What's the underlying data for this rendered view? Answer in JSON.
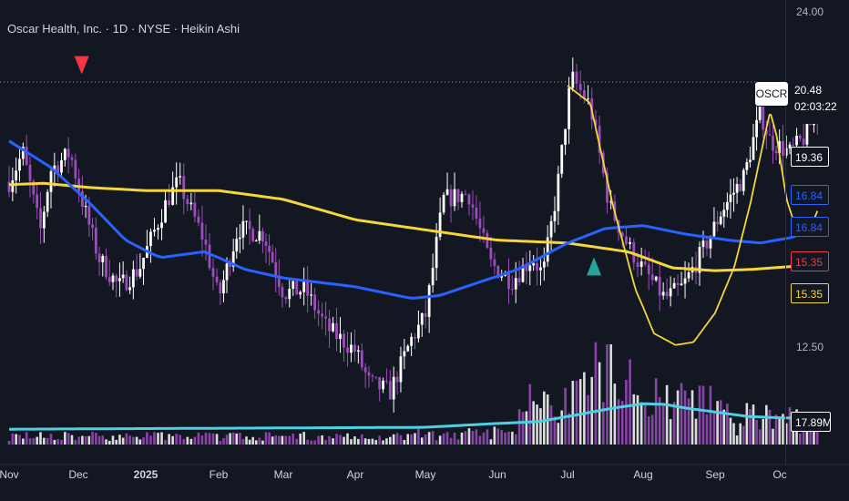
{
  "header": {
    "title": "Oscar Health, Inc. · 1D · NYSE · Heikin Ashi"
  },
  "price_scale": {
    "top_label": "24.00",
    "mid_label": "12.50",
    "symbol": "OSCR",
    "last_price": "20.48",
    "countdown": "02:03:22",
    "tags": [
      {
        "value": "19.36",
        "color": "#ffffff"
      },
      {
        "value": "16.84",
        "color": "#2962ff"
      },
      {
        "value": "16.84",
        "color": "#2962ff"
      },
      {
        "value": "15.35",
        "color": "#f23645"
      },
      {
        "value": "15.35",
        "color": "#f5d63b"
      },
      {
        "value": "17.89M",
        "color": "#ffffff"
      }
    ]
  },
  "time_axis": {
    "labels": [
      "Nov",
      "Dec",
      "2025",
      "Feb",
      "Mar",
      "Apr",
      "May",
      "Jun",
      "Jul",
      "Aug",
      "Sep",
      "Oc"
    ]
  },
  "colors": {
    "background": "#131722",
    "up": "#ffffff",
    "down": "#9c4dbc",
    "ma_fast": "#2962ff",
    "ma_slow": "#f5d63b",
    "volume_ma": "#4dd0e1",
    "curve": "#f5d63b",
    "sell_marker": "#f23645",
    "buy_marker": "#26a69a"
  },
  "chart_data": {
    "type": "candlestick",
    "title": "Oscar Health, Inc. · 1D · NYSE · Heikin Ashi",
    "ylim": [
      8.8,
      24.8
    ],
    "x": [
      "Nov",
      "Dec",
      "2025",
      "Feb",
      "Mar",
      "Apr",
      "May",
      "Jun",
      "Jul",
      "Aug",
      "Sep",
      "Oc"
    ],
    "price_path": [
      [
        0,
        18.2
      ],
      [
        0.2,
        19.2
      ],
      [
        0.45,
        16.5
      ],
      [
        0.6,
        18.6
      ],
      [
        0.88,
        19.2
      ],
      [
        1.05,
        17.6
      ],
      [
        1.3,
        15.6
      ],
      [
        1.6,
        14.6
      ],
      [
        1.9,
        15.2
      ],
      [
        2.3,
        17.6
      ],
      [
        2.45,
        18.2
      ],
      [
        2.8,
        16.2
      ],
      [
        3.0,
        14.2
      ],
      [
        3.3,
        16.6
      ],
      [
        3.7,
        16.4
      ],
      [
        4.0,
        14.4
      ],
      [
        4.3,
        14.5
      ],
      [
        4.6,
        13.2
      ],
      [
        5.0,
        12.4
      ],
      [
        5.2,
        11.3
      ],
      [
        5.5,
        11.0
      ],
      [
        5.8,
        12.8
      ],
      [
        6.0,
        13.6
      ],
      [
        6.25,
        17.6
      ],
      [
        6.6,
        17.8
      ],
      [
        6.9,
        15.4
      ],
      [
        7.2,
        14.8
      ],
      [
        7.5,
        15.6
      ],
      [
        7.65,
        15.0
      ],
      [
        7.85,
        17.9
      ],
      [
        8.05,
        21.8
      ],
      [
        8.3,
        20.8
      ],
      [
        8.55,
        17.4
      ],
      [
        8.8,
        16.0
      ],
      [
        9.0,
        15.2
      ],
      [
        9.3,
        14.2
      ],
      [
        9.55,
        14.6
      ],
      [
        9.8,
        15.7
      ],
      [
        10.1,
        17.2
      ],
      [
        10.45,
        18.4
      ],
      [
        10.7,
        20.6
      ],
      [
        10.85,
        19.6
      ],
      [
        11.15,
        19.2
      ],
      [
        11.35,
        19.7
      ],
      [
        11.5,
        20.4
      ]
    ],
    "series": [
      {
        "values_path": [
          [
            0,
            19.6
          ],
          [
            0.6,
            18.7
          ],
          [
            1.2,
            17.4
          ],
          [
            1.7,
            16.2
          ],
          [
            2.2,
            15.6
          ],
          [
            2.8,
            15.8
          ],
          [
            3.4,
            15.2
          ],
          [
            4.0,
            14.9
          ],
          [
            5.0,
            14.6
          ],
          [
            5.8,
            14.2
          ],
          [
            6.2,
            14.3
          ],
          [
            6.8,
            14.8
          ],
          [
            7.3,
            15.2
          ],
          [
            8.0,
            16.1
          ],
          [
            8.5,
            16.6
          ],
          [
            9.0,
            16.7
          ],
          [
            9.6,
            16.4
          ],
          [
            10.2,
            16.2
          ],
          [
            10.7,
            16.1
          ],
          [
            11.2,
            16.3
          ],
          [
            11.5,
            16.84
          ]
        ]
      },
      {
        "values_path": [
          [
            0,
            18.1
          ],
          [
            0.5,
            18.15
          ],
          [
            1.2,
            18.0
          ],
          [
            2.0,
            17.9
          ],
          [
            3.0,
            17.9
          ],
          [
            4.0,
            17.6
          ],
          [
            5.0,
            16.9
          ],
          [
            6.0,
            16.55
          ],
          [
            7.0,
            16.2
          ],
          [
            8.0,
            16.1
          ],
          [
            8.8,
            15.8
          ],
          [
            9.4,
            15.25
          ],
          [
            10.0,
            15.15
          ],
          [
            10.6,
            15.2
          ],
          [
            11.5,
            15.35
          ]
        ]
      },
      {
        "values_path": [
          [
            8.0,
            21.5
          ],
          [
            8.3,
            20.9
          ],
          [
            8.6,
            17.4
          ],
          [
            8.9,
            14.5
          ],
          [
            9.15,
            13.0
          ],
          [
            9.45,
            12.6
          ],
          [
            9.7,
            12.7
          ],
          [
            10.0,
            13.7
          ],
          [
            10.3,
            15.3
          ],
          [
            10.55,
            17.5
          ],
          [
            10.75,
            19.6
          ],
          [
            10.85,
            20.6
          ],
          [
            10.95,
            19.8
          ],
          [
            11.1,
            17.6
          ],
          [
            11.25,
            16.5
          ],
          [
            11.45,
            16.6
          ],
          [
            11.55,
            17.2
          ]
        ]
      },
      {
        "values_path": [
          [
            0,
            0.24
          ],
          [
            2.0,
            0.25
          ],
          [
            4.0,
            0.26
          ],
          [
            6.0,
            0.27
          ],
          [
            7.0,
            0.33
          ],
          [
            7.6,
            0.36
          ],
          [
            8.1,
            0.46
          ],
          [
            8.6,
            0.57
          ],
          [
            9.0,
            0.64
          ],
          [
            9.3,
            0.63
          ],
          [
            9.6,
            0.57
          ],
          [
            10.0,
            0.51
          ],
          [
            10.5,
            0.44
          ],
          [
            11.0,
            0.42
          ],
          [
            11.5,
            0.41
          ]
        ]
      }
    ],
    "markers": [
      {
        "x": 1.05,
        "y": 22.2,
        "type": "sell"
      },
      {
        "x": 8.35,
        "y": 15.3,
        "type": "buy"
      }
    ]
  }
}
